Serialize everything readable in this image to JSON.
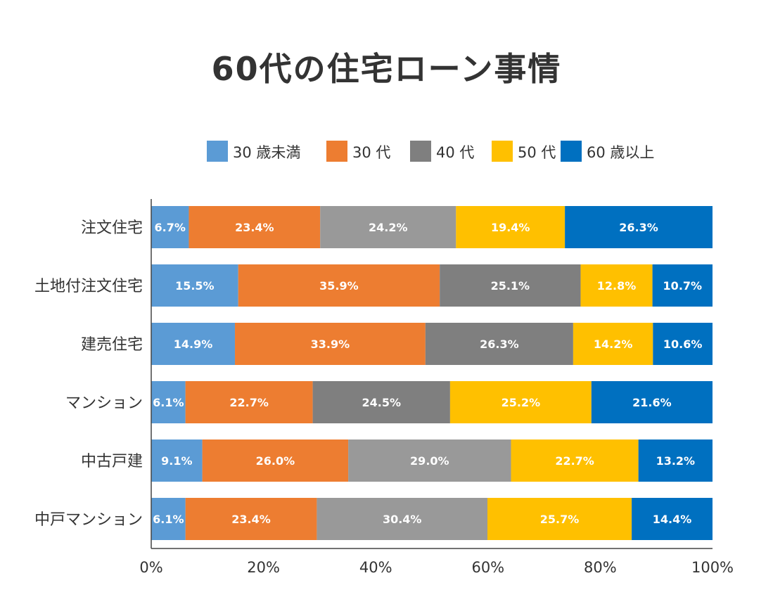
{
  "chart_data": {
    "type": "bar",
    "orientation": "horizontal",
    "stacked": true,
    "title": "60代の住宅ローン事情",
    "categories": [
      "注文住宅",
      "土地付注文住宅",
      "建売住宅",
      "マンション",
      "中古戸建",
      "中戸マンション"
    ],
    "series": [
      {
        "name": "30 歳未満",
        "color": "#5b9bd5",
        "values": [
          6.7,
          15.5,
          14.9,
          6.1,
          9.1,
          6.1
        ]
      },
      {
        "name": "30 代",
        "color": "#ed7d31",
        "values": [
          23.4,
          35.9,
          33.9,
          22.7,
          26.0,
          23.4
        ]
      },
      {
        "name": "40 代",
        "color": "#7f7f7f",
        "row_colors": [
          "#999999",
          "#7f7f7f",
          "#7f7f7f",
          "#7f7f7f",
          "#999999",
          "#999999"
        ],
        "values": [
          24.2,
          25.1,
          26.3,
          24.5,
          29.0,
          30.4
        ]
      },
      {
        "name": "50 代",
        "color": "#ffc000",
        "values": [
          19.4,
          12.8,
          14.2,
          25.2,
          22.7,
          25.7
        ]
      },
      {
        "name": "60 歳以上",
        "color": "#0070c0",
        "values": [
          26.3,
          10.7,
          10.6,
          21.6,
          13.2,
          14.4
        ]
      }
    ],
    "xlim": [
      0,
      100
    ],
    "xticks": [
      "0%",
      "20%",
      "40%",
      "60%",
      "80%",
      "100%"
    ],
    "legend": "top",
    "grid": false,
    "data_labels": true
  }
}
